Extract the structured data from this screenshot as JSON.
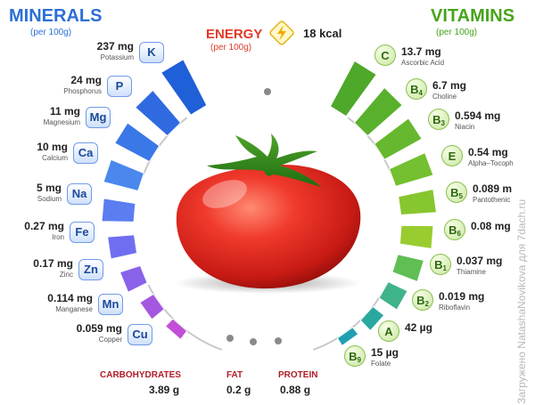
{
  "minerals": {
    "title": "MINERALS",
    "subtitle": "(per 100g)",
    "items": [
      {
        "value": "237 mg",
        "name": "Potassium",
        "symbol": "K"
      },
      {
        "value": "24 mg",
        "name": "Phosphorus",
        "symbol": "P"
      },
      {
        "value": "11 mg",
        "name": "Magnesium",
        "symbol": "Mg"
      },
      {
        "value": "10 mg",
        "name": "Calcium",
        "symbol": "Ca"
      },
      {
        "value": "5 mg",
        "name": "Sodium",
        "symbol": "Na"
      },
      {
        "value": "0.27 mg",
        "name": "Iron",
        "symbol": "Fe"
      },
      {
        "value": "0.17 mg",
        "name": "Zinc",
        "symbol": "Zn"
      },
      {
        "value": "0.114 mg",
        "name": "Manganese",
        "symbol": "Mn"
      },
      {
        "value": "0.059 mg",
        "name": "Copper",
        "symbol": "Cu"
      }
    ]
  },
  "vitamins": {
    "title": "VITAMINS",
    "subtitle": "(per 100g)",
    "items": [
      {
        "value": "13.7 mg",
        "name": "Ascorbic Acid",
        "symbol": "C",
        "sub": ""
      },
      {
        "value": "6.7 mg",
        "name": "Choline",
        "symbol": "B",
        "sub": "4"
      },
      {
        "value": "0.594 mg",
        "name": "Niacin",
        "symbol": "B",
        "sub": "3"
      },
      {
        "value": "0.54 mg",
        "name": "Alpha–Tocoph",
        "symbol": "E",
        "sub": ""
      },
      {
        "value": "0.089 m",
        "name": "Pantothenic",
        "symbol": "B",
        "sub": "5"
      },
      {
        "value": "0.08 mg",
        "name": "",
        "symbol": "B",
        "sub": "6"
      },
      {
        "value": "0.037 mg",
        "name": "Thiamine",
        "symbol": "B",
        "sub": "1"
      },
      {
        "value": "0.019 mg",
        "name": "Riboflavin",
        "symbol": "B",
        "sub": "2"
      },
      {
        "value": "42 µg",
        "name": "",
        "symbol": "A",
        "sub": ""
      },
      {
        "value": "15 µg",
        "name": "Folate",
        "symbol": "B",
        "sub": "9"
      }
    ]
  },
  "energy": {
    "label": "ENERGY",
    "subtitle": "(per 100g)",
    "value": "18 kcal",
    "icon": "lightning-bolt-icon"
  },
  "nutrients": [
    {
      "label": "CARBOHYDRATES",
      "value": "3.89 g"
    },
    {
      "label": "FAT",
      "value": "0.2 g"
    },
    {
      "label": "PROTEIN",
      "value": "0.88 g"
    }
  ],
  "watermark": "Загружено NatashaNovikova для 7dach.ru",
  "colors": {
    "minerals_title": "#2c6fd6",
    "vitamins_title": "#47a51b",
    "energy": "#e03a2a",
    "nutrient_label": "#b01c28",
    "tomato": "#e8332a"
  }
}
